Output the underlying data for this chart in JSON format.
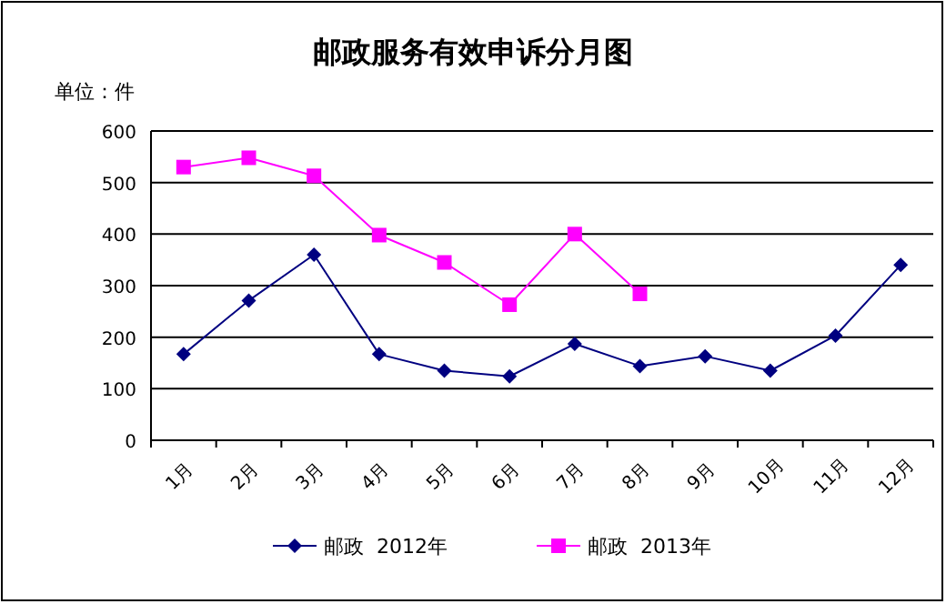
{
  "chart_data": {
    "type": "line",
    "title": "邮政服务有效申诉分月图",
    "ylabel": "单位：件",
    "categories": [
      "1月",
      "2月",
      "3月",
      "4月",
      "5月",
      "6月",
      "7月",
      "8月",
      "9月",
      "10月",
      "11月",
      "12月"
    ],
    "series": [
      {
        "name": "邮政  2012年",
        "color": "#000080",
        "marker": "diamond",
        "values": [
          167,
          271,
          360,
          167,
          135,
          124,
          187,
          144,
          163,
          135,
          203,
          340
        ]
      },
      {
        "name": "邮政  2013年",
        "color": "#ff00ff",
        "marker": "square",
        "values": [
          530,
          548,
          513,
          398,
          345,
          263,
          400,
          284,
          null,
          null,
          null,
          null
        ]
      }
    ],
    "ylim": [
      0,
      600
    ],
    "yticks": [
      0,
      100,
      200,
      300,
      400,
      500,
      600
    ],
    "grid": "y",
    "legend": "bottom"
  }
}
